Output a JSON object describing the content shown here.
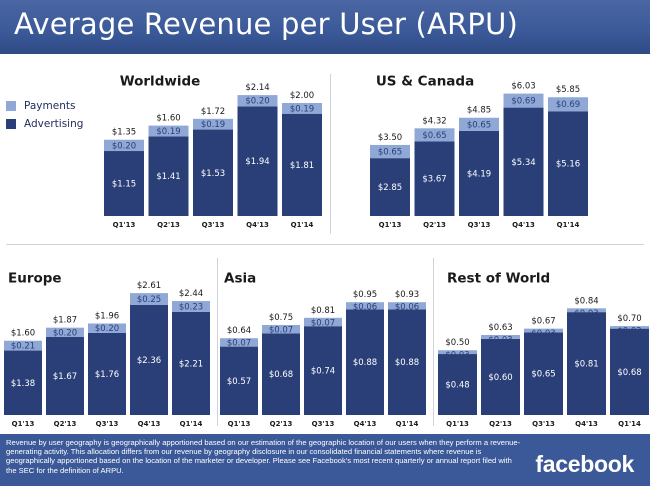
{
  "header": {
    "title": "Average Revenue per User (ARPU)"
  },
  "legend": {
    "items": [
      {
        "label": "Payments",
        "color": "#8fa8d6"
      },
      {
        "label": "Advertising",
        "color": "#2a3f77"
      }
    ]
  },
  "colors": {
    "payments": "#8fa8d6",
    "advertising": "#2a3f77",
    "accent": "#3b5998"
  },
  "footer": {
    "note": "Revenue by user geography is geographically apportioned based on our estimation of the geographic location of our users when they perform a revenue-generating activity. This allocation differs from our revenue by geography disclosure in our consolidated financial statements where revenue is geographically apportioned based on the location of the marketer or developer. Please see Facebook's most recent quarterly or annual report filed with the SEC for the definition of ARPU.",
    "logo": "facebook"
  },
  "chart_data": [
    {
      "type": "bar",
      "title": "Worldwide",
      "categories": [
        "Q1'13",
        "Q2'13",
        "Q3'13",
        "Q4'13",
        "Q1'14"
      ],
      "series": [
        {
          "name": "Advertising",
          "values": [
            1.15,
            1.41,
            1.53,
            1.94,
            1.81
          ],
          "labels": [
            "$1.15",
            "$1.41",
            "$1.53",
            "$1.94",
            "$1.81"
          ]
        },
        {
          "name": "Payments",
          "values": [
            0.2,
            0.19,
            0.19,
            0.2,
            0.19
          ],
          "labels": [
            "$0.20",
            "$0.19",
            "$0.19",
            "$0.20",
            "$0.19"
          ]
        }
      ],
      "totals": [
        1.35,
        1.6,
        1.72,
        2.14,
        2.0
      ],
      "total_labels": [
        "$1.35",
        "$1.60",
        "$1.72",
        "$2.14",
        "$2.00"
      ]
    },
    {
      "type": "bar",
      "title": "US & Canada",
      "categories": [
        "Q1'13",
        "Q2'13",
        "Q3'13",
        "Q4'13",
        "Q1'14"
      ],
      "series": [
        {
          "name": "Advertising",
          "values": [
            2.85,
            3.67,
            4.19,
            5.34,
            5.16
          ],
          "labels": [
            "$2.85",
            "$3.67",
            "$4.19",
            "$5.34",
            "$5.16"
          ]
        },
        {
          "name": "Payments",
          "values": [
            0.65,
            0.65,
            0.65,
            0.69,
            0.69
          ],
          "labels": [
            "$0.65",
            "$0.65",
            "$0.65",
            "$0.69",
            "$0.69"
          ]
        }
      ],
      "totals": [
        3.5,
        4.32,
        4.85,
        6.03,
        5.85
      ],
      "total_labels": [
        "$3.50",
        "$4.32",
        "$4.85",
        "$6.03",
        "$5.85"
      ]
    },
    {
      "type": "bar",
      "title": "Europe",
      "categories": [
        "Q1'13",
        "Q2'13",
        "Q3'13",
        "Q4'13",
        "Q1'14"
      ],
      "series": [
        {
          "name": "Advertising",
          "values": [
            1.38,
            1.67,
            1.76,
            2.36,
            2.21
          ],
          "labels": [
            "$1.38",
            "$1.67",
            "$1.76",
            "$2.36",
            "$2.21"
          ]
        },
        {
          "name": "Payments",
          "values": [
            0.21,
            0.2,
            0.2,
            0.25,
            0.23
          ],
          "labels": [
            "$0.21",
            "$0.20",
            "$0.20",
            "$0.25",
            "$0.23"
          ]
        }
      ],
      "totals": [
        1.6,
        1.87,
        1.96,
        2.61,
        2.44
      ],
      "total_labels": [
        "$1.60",
        "$1.87",
        "$1.96",
        "$2.61",
        "$2.44"
      ]
    },
    {
      "type": "bar",
      "title": "Asia",
      "categories": [
        "Q1'13",
        "Q2'13",
        "Q3'13",
        "Q4'13",
        "Q1'14"
      ],
      "series": [
        {
          "name": "Advertising",
          "values": [
            0.57,
            0.68,
            0.74,
            0.88,
            0.88
          ],
          "labels": [
            "$0.57",
            "$0.68",
            "$0.74",
            "$0.88",
            "$0.88"
          ]
        },
        {
          "name": "Payments",
          "values": [
            0.07,
            0.07,
            0.07,
            0.06,
            0.06
          ],
          "labels": [
            "$0.07",
            "$0.07",
            "$0.07",
            "$0.06",
            "$0.06"
          ]
        }
      ],
      "totals": [
        0.64,
        0.75,
        0.81,
        0.95,
        0.93
      ],
      "total_labels": [
        "$0.64",
        "$0.75",
        "$0.81",
        "$0.95",
        "$0.93"
      ]
    },
    {
      "type": "bar",
      "title": "Rest of World",
      "categories": [
        "Q1'13",
        "Q2'13",
        "Q3'13",
        "Q4'13",
        "Q1'14"
      ],
      "series": [
        {
          "name": "Advertising",
          "values": [
            0.48,
            0.6,
            0.65,
            0.81,
            0.68
          ],
          "labels": [
            "$0.48",
            "$0.60",
            "$0.65",
            "$0.81",
            "$0.68"
          ]
        },
        {
          "name": "Payments",
          "values": [
            0.03,
            0.03,
            0.03,
            0.03,
            0.02
          ],
          "labels": [
            "$0.03",
            "$0.03",
            "$0.03",
            "$0.03",
            "$0.02"
          ]
        }
      ],
      "totals": [
        0.5,
        0.63,
        0.67,
        0.84,
        0.7
      ],
      "total_labels": [
        "$0.50",
        "$0.63",
        "$0.67",
        "$0.84",
        "$0.70"
      ]
    }
  ]
}
